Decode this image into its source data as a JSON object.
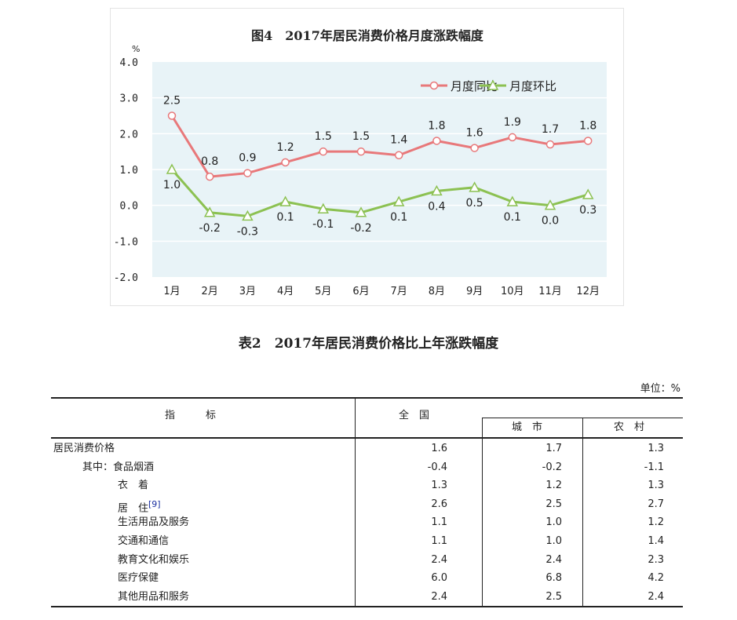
{
  "chart_data": {
    "type": "line",
    "title": "图4　2017年居民消费价格月度涨跌幅度",
    "ylabel": "%",
    "ylim": [
      -2.0,
      4.0
    ],
    "yticks": [
      "4.0",
      "3.0",
      "2.0",
      "1.0",
      "0.0",
      "-1.0",
      "-2.0"
    ],
    "categories": [
      "1月",
      "2月",
      "3月",
      "4月",
      "5月",
      "6月",
      "7月",
      "8月",
      "9月",
      "10月",
      "11月",
      "12月"
    ],
    "grid": true,
    "legend": "top-right",
    "series": [
      {
        "name": "月度同比",
        "color": "#e8787a",
        "marker": "circle",
        "values": [
          2.5,
          0.8,
          0.9,
          1.2,
          1.5,
          1.5,
          1.4,
          1.8,
          1.6,
          1.9,
          1.7,
          1.8
        ],
        "labels": [
          "2.5",
          "0.8",
          "0.9",
          "1.2",
          "1.5",
          "1.5",
          "1.4",
          "1.8",
          "1.6",
          "1.9",
          "1.7",
          "1.8"
        ]
      },
      {
        "name": "月度环比",
        "color": "#8cc152",
        "marker": "triangle",
        "values": [
          1.0,
          -0.2,
          -0.3,
          0.1,
          -0.1,
          -0.2,
          0.1,
          0.4,
          0.5,
          0.1,
          0.0,
          0.3
        ],
        "labels": [
          "1.0",
          "-0.2",
          "-0.3",
          "0.1",
          "-0.1",
          "-0.2",
          "0.1",
          "0.4",
          "0.5",
          "0.1",
          "0.0",
          "0.3"
        ]
      }
    ],
    "background": "#e8f3f7"
  },
  "table": {
    "title": "表2　2017年居民消费价格比上年涨跌幅度",
    "unit": "单位：%",
    "headers": {
      "indicator": "指　　　标",
      "national": "全　国",
      "urban": "城　市",
      "rural": "农　村"
    },
    "rows": [
      {
        "label": "居民消费价格",
        "national": "1.6",
        "urban": "1.7",
        "rural": "1.3"
      },
      {
        "label": "其中：食品烟酒",
        "national": "-0.4",
        "urban": "-0.2",
        "rural": "-1.1"
      },
      {
        "label": "衣　着",
        "national": "1.3",
        "urban": "1.2",
        "rural": "1.3"
      },
      {
        "label": "居　住",
        "note": "[9]",
        "national": "2.6",
        "urban": "2.5",
        "rural": "2.7"
      },
      {
        "label": "生活用品及服务",
        "national": "1.1",
        "urban": "1.0",
        "rural": "1.2"
      },
      {
        "label": "交通和通信",
        "national": "1.1",
        "urban": "1.0",
        "rural": "1.4"
      },
      {
        "label": "教育文化和娱乐",
        "national": "2.4",
        "urban": "2.4",
        "rural": "2.3"
      },
      {
        "label": "医疗保健",
        "national": "6.0",
        "urban": "6.8",
        "rural": "4.2"
      },
      {
        "label": "其他用品和服务",
        "national": "2.4",
        "urban": "2.5",
        "rural": "2.4"
      }
    ]
  }
}
